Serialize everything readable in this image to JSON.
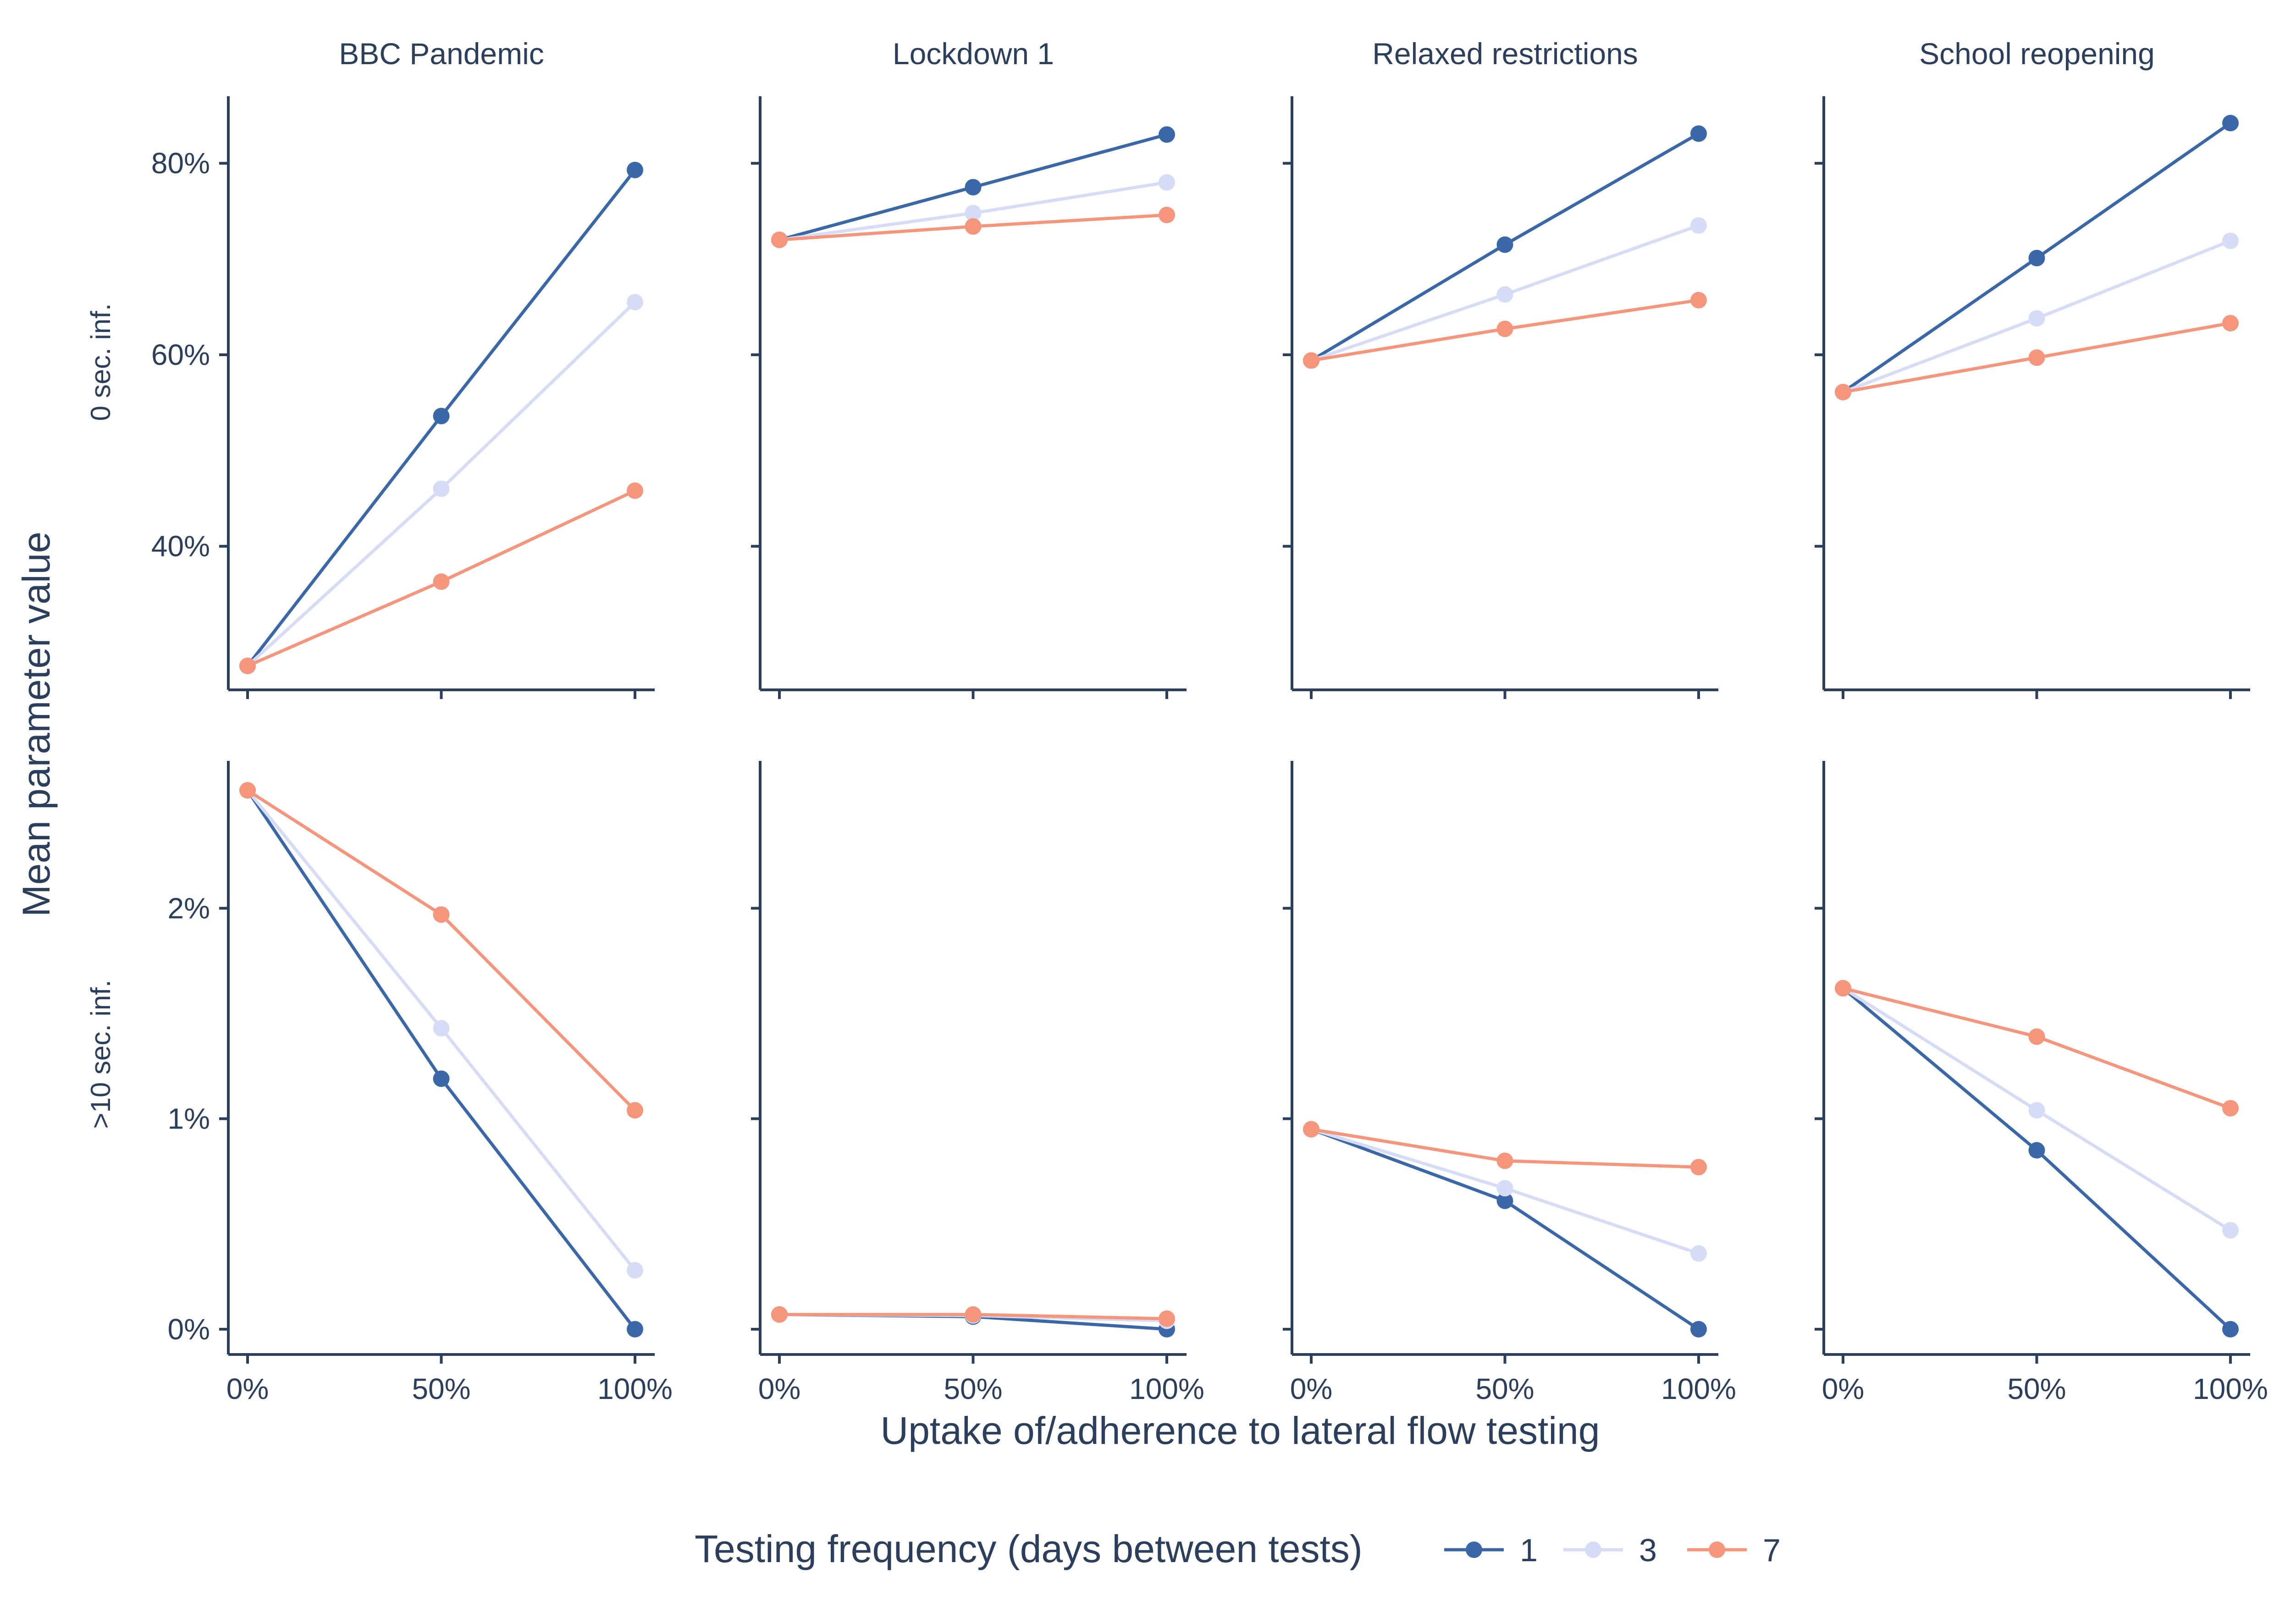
{
  "chart_data": {
    "type": "line",
    "facet_columns": [
      "BBC Pandemic",
      "Lockdown 1",
      "Relaxed restrictions",
      "School reopening"
    ],
    "facet_rows": [
      "0 sec. inf.",
      ">10 sec. inf."
    ],
    "x": [
      0,
      50,
      100
    ],
    "x_tick_labels": [
      "0%",
      "50%",
      "100%"
    ],
    "xlabel": "Uptake of/adherence to lateral flow testing",
    "ylabel": "Mean parameter value",
    "rows": [
      {
        "ylim": [
          25,
          87
        ],
        "y_ticks": [
          40,
          60,
          80
        ],
        "y_tick_labels": [
          "40%",
          "60%",
          "80%"
        ]
      },
      {
        "ylim": [
          -0.12,
          2.7
        ],
        "y_ticks": [
          0,
          1,
          2
        ],
        "y_tick_labels": [
          "0%",
          "1%",
          "2%"
        ]
      }
    ],
    "legend": {
      "title": "Testing frequency (days between tests)",
      "position": "bottom",
      "entries": [
        "1",
        "3",
        "7"
      ]
    },
    "colors": {
      "1": "#3a67a8",
      "3": "#d6dcf5",
      "7": "#f5957b"
    },
    "panels": [
      {
        "row": 0,
        "col": 0,
        "series": [
          {
            "name": "1",
            "values": [
              27.5,
              53.6,
              79.3
            ]
          },
          {
            "name": "3",
            "values": [
              27.5,
              46.0,
              65.5
            ]
          },
          {
            "name": "7",
            "values": [
              27.5,
              36.3,
              45.8
            ]
          }
        ]
      },
      {
        "row": 0,
        "col": 1,
        "series": [
          {
            "name": "1",
            "values": [
              72.0,
              77.5,
              83.0
            ]
          },
          {
            "name": "3",
            "values": [
              72.0,
              74.8,
              78.0
            ]
          },
          {
            "name": "7",
            "values": [
              72.0,
              73.4,
              74.6
            ]
          }
        ]
      },
      {
        "row": 0,
        "col": 2,
        "series": [
          {
            "name": "1",
            "values": [
              59.4,
              71.5,
              83.1
            ]
          },
          {
            "name": "3",
            "values": [
              59.4,
              66.3,
              73.5
            ]
          },
          {
            "name": "7",
            "values": [
              59.4,
              62.7,
              65.7
            ]
          }
        ]
      },
      {
        "row": 0,
        "col": 3,
        "series": [
          {
            "name": "1",
            "values": [
              56.1,
              70.1,
              84.2
            ]
          },
          {
            "name": "3",
            "values": [
              56.1,
              63.8,
              71.9
            ]
          },
          {
            "name": "7",
            "values": [
              56.1,
              59.7,
              63.3
            ]
          }
        ]
      },
      {
        "row": 1,
        "col": 0,
        "series": [
          {
            "name": "1",
            "values": [
              2.56,
              1.19,
              0.0
            ]
          },
          {
            "name": "3",
            "values": [
              2.56,
              1.43,
              0.28
            ]
          },
          {
            "name": "7",
            "values": [
              2.56,
              1.97,
              1.04
            ]
          }
        ]
      },
      {
        "row": 1,
        "col": 1,
        "series": [
          {
            "name": "1",
            "values": [
              0.07,
              0.06,
              0.0
            ]
          },
          {
            "name": "3",
            "values": [
              0.07,
              0.065,
              0.04
            ]
          },
          {
            "name": "7",
            "values": [
              0.07,
              0.07,
              0.05
            ]
          }
        ]
      },
      {
        "row": 1,
        "col": 2,
        "series": [
          {
            "name": "1",
            "values": [
              0.95,
              0.61,
              0.0
            ]
          },
          {
            "name": "3",
            "values": [
              0.95,
              0.67,
              0.36
            ]
          },
          {
            "name": "7",
            "values": [
              0.95,
              0.8,
              0.77
            ]
          }
        ]
      },
      {
        "row": 1,
        "col": 3,
        "series": [
          {
            "name": "1",
            "values": [
              1.62,
              0.85,
              0.0
            ]
          },
          {
            "name": "3",
            "values": [
              1.62,
              1.04,
              0.47
            ]
          },
          {
            "name": "7",
            "values": [
              1.62,
              1.39,
              1.05
            ]
          }
        ]
      }
    ]
  }
}
